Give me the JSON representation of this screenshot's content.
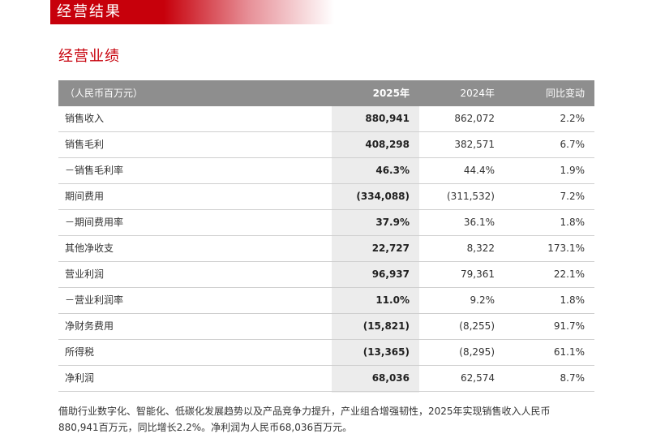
{
  "banner": {
    "title": "经营结果"
  },
  "section": {
    "title": "经营业绩"
  },
  "table": {
    "headers": {
      "label": "（人民币百万元）",
      "y2025": "2025年",
      "y2024": "2024年",
      "yoy": "同比变动"
    },
    "rows": [
      {
        "label": "销售收入",
        "y2025": "880,941",
        "y2024": "862,072",
        "yoy": "2.2%"
      },
      {
        "label": "销售毛利",
        "y2025": "408,298",
        "y2024": "382,571",
        "yoy": "6.7%"
      },
      {
        "label": "－销售毛利率",
        "y2025": "46.3%",
        "y2024": "44.4%",
        "yoy": "1.9%"
      },
      {
        "label": "期间费用",
        "y2025": "(334,088)",
        "y2024": "(311,532)",
        "yoy": "7.2%"
      },
      {
        "label": "－期间费用率",
        "y2025": "37.9%",
        "y2024": "36.1%",
        "yoy": "1.8%"
      },
      {
        "label": "其他净收支",
        "y2025": "22,727",
        "y2024": "8,322",
        "yoy": "173.1%"
      },
      {
        "label": "营业利润",
        "y2025": "96,937",
        "y2024": "79,361",
        "yoy": "22.1%"
      },
      {
        "label": "－营业利润率",
        "y2025": "11.0%",
        "y2024": "9.2%",
        "yoy": "1.8%"
      },
      {
        "label": "净财务费用",
        "y2025": "(15,821)",
        "y2024": "(8,255)",
        "yoy": "91.7%"
      },
      {
        "label": "所得税",
        "y2025": "(13,365)",
        "y2024": "(8,295)",
        "yoy": "61.1%"
      },
      {
        "label": "净利润",
        "y2025": "68,036",
        "y2024": "62,574",
        "yoy": "8.7%"
      }
    ]
  },
  "footnote": {
    "line1": "借助行业数字化、智能化、低碳化发展趋势以及产品竞争力提升，产业组合增强韧性，2025年实现销售收入人民币",
    "line2": "880,941百万元，同比增长2.2%。净利润为人民币68,036百万元。"
  },
  "colors": {
    "accent": "#c7000b",
    "header_bg": "#8e8e8e",
    "highlight_col": "#ececec"
  }
}
